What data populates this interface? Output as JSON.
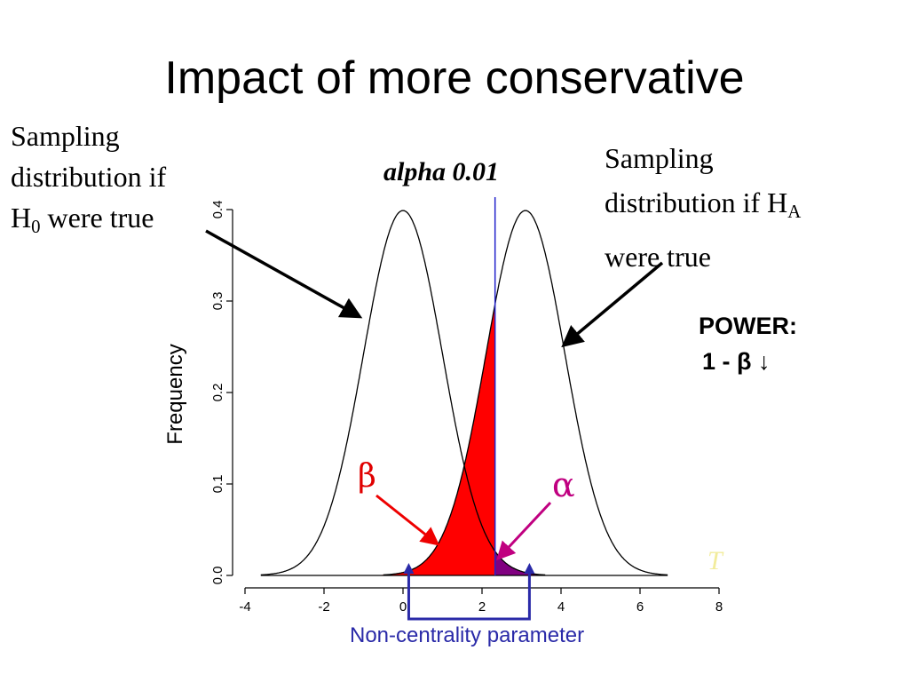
{
  "title": "Impact of more conservative",
  "annotations": {
    "h0": {
      "line1": "Sampling",
      "line2": "distribution if",
      "line3_pre": "H",
      "line3_sub": "0",
      "line3_post": " were true"
    },
    "ha": {
      "line1": "Sampling",
      "line2_pre": "distribution if H",
      "line2_sub": "A",
      "line3": "were true"
    },
    "alpha_level": "alpha 0.01",
    "power_line1": "POWER:",
    "power_line2": "1 - β ↓",
    "beta_symbol": "β",
    "alpha_symbol": "α",
    "ncp_label": "Non-centrality parameter",
    "gloss": "T"
  },
  "chart_data": {
    "type": "line",
    "title": "",
    "xlabel": "",
    "ylabel": "Frequency",
    "xlim": [
      -4,
      8
    ],
    "ylim": [
      0,
      0.4
    ],
    "x_ticks": [
      -4,
      -2,
      0,
      2,
      4,
      6,
      8
    ],
    "y_ticks": [
      0.0,
      0.1,
      0.2,
      0.3,
      0.4
    ],
    "x_tick_labels": [
      "-4",
      "-2",
      "0",
      "2",
      "4",
      "6",
      "8"
    ],
    "y_tick_labels": [
      "0.0",
      "0.1",
      "0.2",
      "0.3",
      "0.4"
    ],
    "series": [
      {
        "mean": 0,
        "sd": 1
      },
      {
        "mean": 3.1,
        "sd": 1
      }
    ],
    "critical_value": 2.33,
    "regions": [
      {
        "symbol": "β",
        "from": -1,
        "to": 2.33,
        "under": "H_A",
        "color": "#ff0000"
      },
      {
        "symbol": "α",
        "from": 2.33,
        "to": 3.5,
        "under": "H_0",
        "color": "#800080"
      }
    ],
    "ncp_range": [
      0.1,
      3.2
    ],
    "colors": {
      "curve": "#000000",
      "beta": "#ff0000",
      "alpha": "#800080",
      "critical": "#2222cc",
      "ncp": "#2a2aa8",
      "beta_arrow": "#ee0000",
      "alpha_arrow": "#c00080"
    }
  }
}
